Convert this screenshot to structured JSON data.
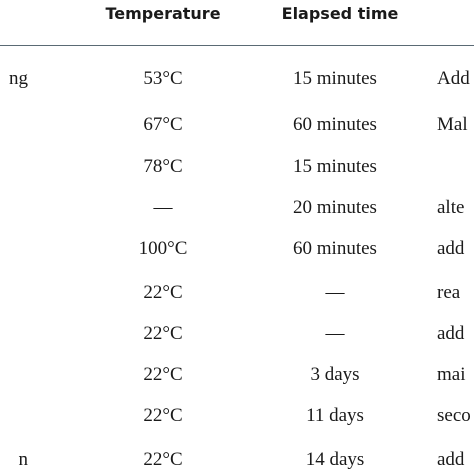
{
  "table": {
    "headers": [
      "Temperature",
      "Elapsed time"
    ],
    "rows": [
      {
        "step": "ng",
        "temperature": "53°C",
        "elapsed_time": "15 minutes",
        "note": "Add"
      },
      {
        "step": "",
        "temperature": "67°C",
        "elapsed_time": "60 minutes",
        "note": "Mal"
      },
      {
        "step": "",
        "temperature": "78°C",
        "elapsed_time": "15 minutes",
        "note": ""
      },
      {
        "step": "",
        "temperature": "—",
        "elapsed_time": "20 minutes",
        "note": "alte"
      },
      {
        "step": "",
        "temperature": "100°C",
        "elapsed_time": "60 minutes",
        "note": "add"
      },
      {
        "step": "",
        "temperature": "22°C",
        "elapsed_time": "—",
        "note": "rea"
      },
      {
        "step": "",
        "temperature": "22°C",
        "elapsed_time": "—",
        "note": "add"
      },
      {
        "step": "",
        "temperature": "22°C",
        "elapsed_time": "3 days",
        "note": "mai"
      },
      {
        "step": "",
        "temperature": "22°C",
        "elapsed_time": "11 days",
        "note": "seco"
      },
      {
        "step": "n",
        "temperature": "22°C",
        "elapsed_time": "14 days",
        "note": "add"
      }
    ]
  }
}
